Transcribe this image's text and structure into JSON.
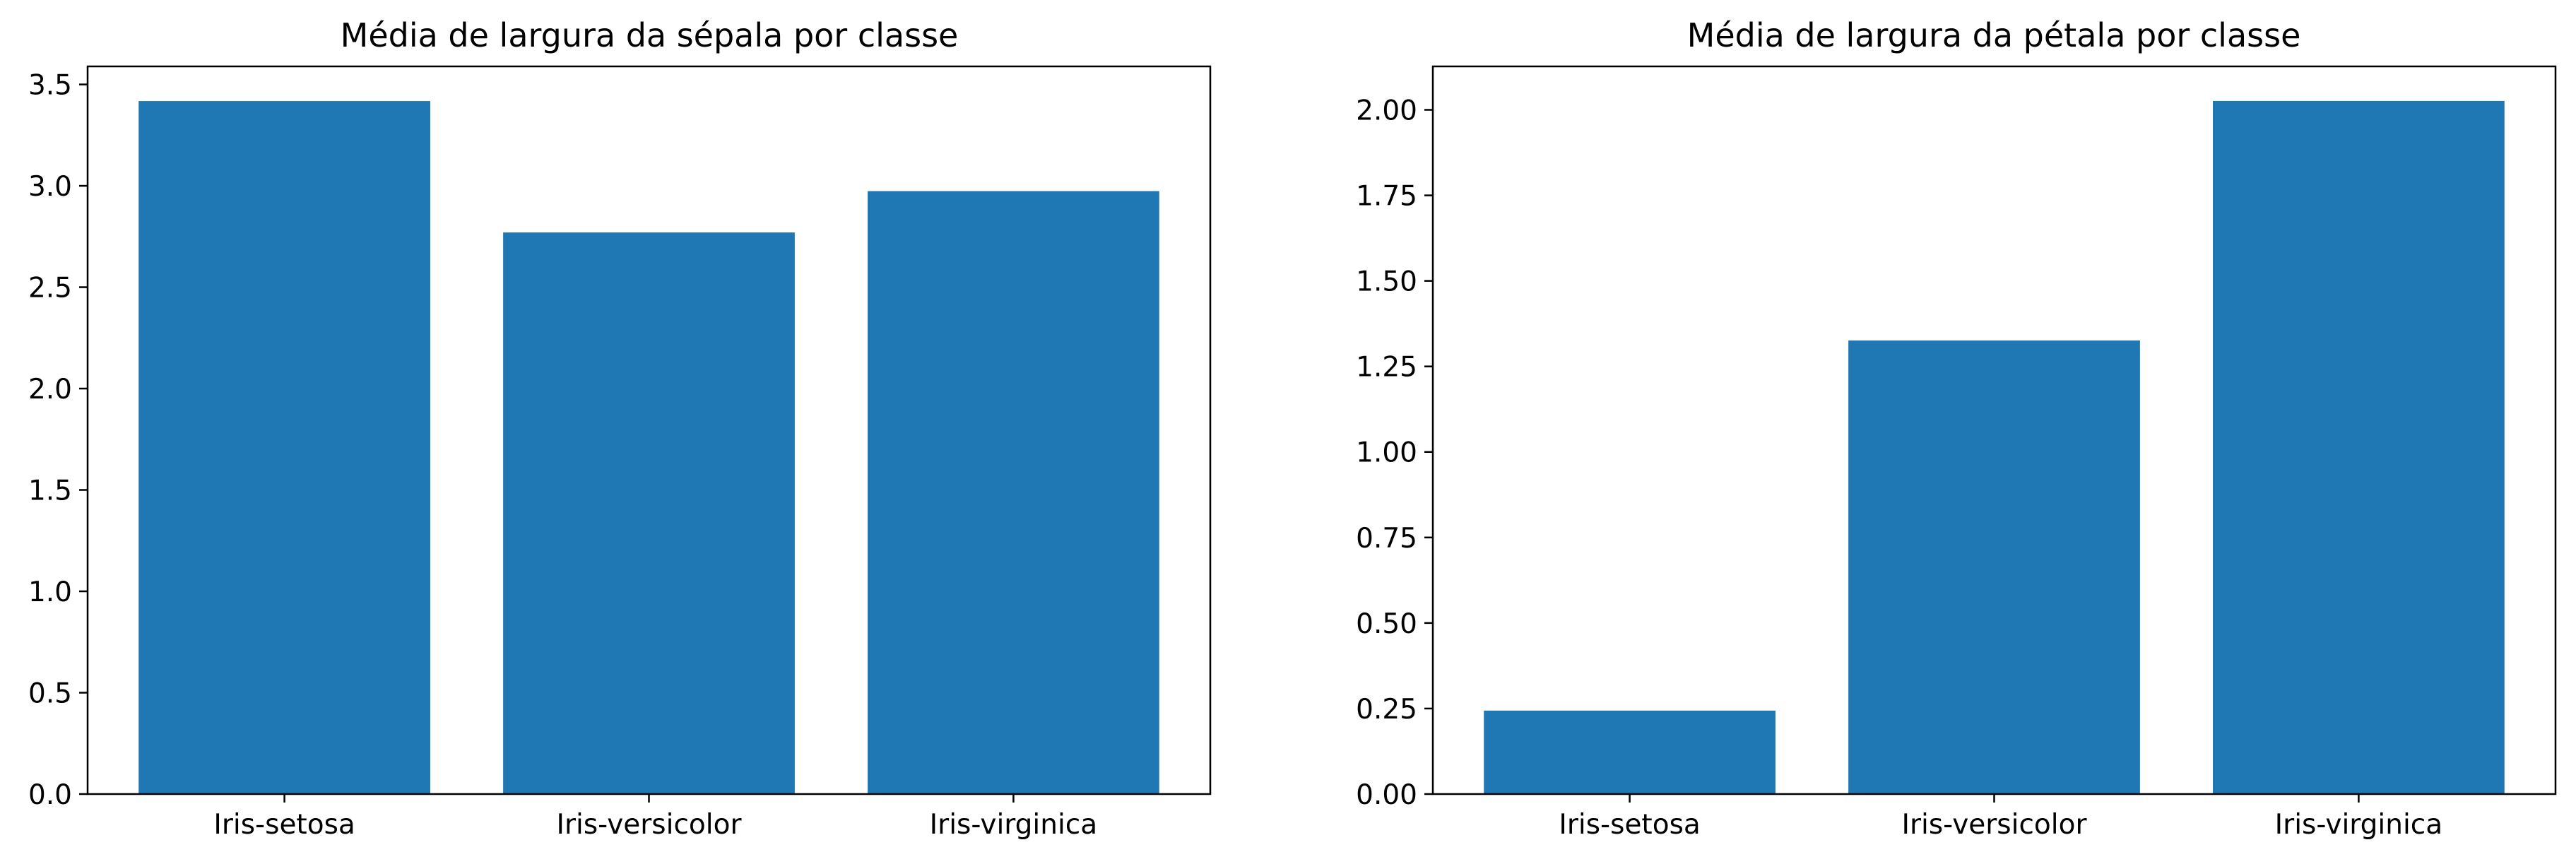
{
  "chart_data": [
    {
      "type": "bar",
      "title": "Média de largura da sépala por classe",
      "categories": [
        "Iris-setosa",
        "Iris-versicolor",
        "Iris-virginica"
      ],
      "values": [
        3.418,
        2.77,
        2.974
      ],
      "yticks": [
        "0.0",
        "0.5",
        "1.0",
        "1.5",
        "2.0",
        "2.5",
        "3.0",
        "3.5"
      ],
      "ylim": [
        0,
        3.589
      ],
      "xlabel": "",
      "ylabel": "",
      "color": "#1f77b4",
      "grid": false
    },
    {
      "type": "bar",
      "title": "Média de largura da pétala por classe",
      "categories": [
        "Iris-setosa",
        "Iris-versicolor",
        "Iris-virginica"
      ],
      "values": [
        0.244,
        1.326,
        2.026
      ],
      "yticks": [
        "0.00",
        "0.25",
        "0.50",
        "0.75",
        "1.00",
        "1.25",
        "1.50",
        "1.75",
        "2.00"
      ],
      "ylim": [
        0,
        2.127
      ],
      "xlabel": "",
      "ylabel": "",
      "color": "#1f77b4",
      "grid": false
    }
  ]
}
